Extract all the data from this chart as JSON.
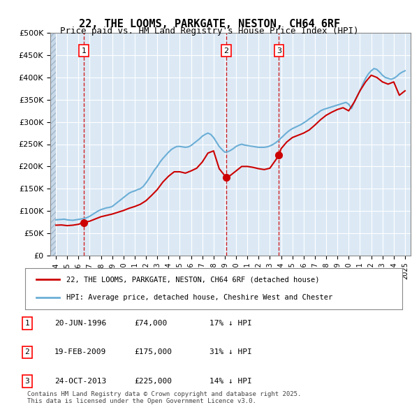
{
  "title": "22, THE LOOMS, PARKGATE, NESTON, CH64 6RF",
  "subtitle": "Price paid vs. HM Land Registry's House Price Index (HPI)",
  "title_fontsize": 11,
  "subtitle_fontsize": 9,
  "ylabel_ticks": [
    "£0",
    "£50K",
    "£100K",
    "£150K",
    "£200K",
    "£250K",
    "£300K",
    "£350K",
    "£400K",
    "£450K",
    "£500K"
  ],
  "ytick_values": [
    0,
    50000,
    100000,
    150000,
    200000,
    250000,
    300000,
    350000,
    400000,
    450000,
    500000
  ],
  "xlim_start": 1993.5,
  "xlim_end": 2025.5,
  "ylim_min": 0,
  "ylim_max": 500000,
  "hpi_color": "#6baed6",
  "price_color": "#cc0000",
  "vline_color": "#cc0000",
  "sale_dates_decimal": [
    1996.47,
    2009.13,
    2013.81
  ],
  "sale_prices": [
    74000,
    175000,
    225000
  ],
  "sale_labels": [
    "1",
    "2",
    "3"
  ],
  "legend_label_red": "22, THE LOOMS, PARKGATE, NESTON, CH64 6RF (detached house)",
  "legend_label_blue": "HPI: Average price, detached house, Cheshire West and Chester",
  "table_data": [
    [
      "1",
      "20-JUN-1996",
      "£74,000",
      "17% ↓ HPI"
    ],
    [
      "2",
      "19-FEB-2009",
      "£175,000",
      "31% ↓ HPI"
    ],
    [
      "3",
      "24-OCT-2013",
      "£225,000",
      "14% ↓ HPI"
    ]
  ],
  "footer": "Contains HM Land Registry data © Crown copyright and database right 2025.\nThis data is licensed under the Open Government Licence v3.0.",
  "background_color": "#dce9f5",
  "plot_bg_color": "#dce9f5",
  "hatch_color": "#b0c4d8",
  "grid_color": "#ffffff",
  "hpi_data": {
    "years": [
      1994,
      1994.25,
      1994.5,
      1994.75,
      1995,
      1995.25,
      1995.5,
      1995.75,
      1996,
      1996.25,
      1996.5,
      1996.75,
      1997,
      1997.25,
      1997.5,
      1997.75,
      1998,
      1998.25,
      1998.5,
      1998.75,
      1999,
      1999.25,
      1999.5,
      1999.75,
      2000,
      2000.25,
      2000.5,
      2000.75,
      2001,
      2001.25,
      2001.5,
      2001.75,
      2002,
      2002.25,
      2002.5,
      2002.75,
      2003,
      2003.25,
      2003.5,
      2003.75,
      2004,
      2004.25,
      2004.5,
      2004.75,
      2005,
      2005.25,
      2005.5,
      2005.75,
      2006,
      2006.25,
      2006.5,
      2006.75,
      2007,
      2007.25,
      2007.5,
      2007.75,
      2008,
      2008.25,
      2008.5,
      2008.75,
      2009,
      2009.25,
      2009.5,
      2009.75,
      2010,
      2010.25,
      2010.5,
      2010.75,
      2011,
      2011.25,
      2011.5,
      2011.75,
      2012,
      2012.25,
      2012.5,
      2012.75,
      2013,
      2013.25,
      2013.5,
      2013.75,
      2014,
      2014.25,
      2014.5,
      2014.75,
      2015,
      2015.25,
      2015.5,
      2015.75,
      2016,
      2016.25,
      2016.5,
      2016.75,
      2017,
      2017.25,
      2017.5,
      2017.75,
      2018,
      2018.25,
      2018.5,
      2018.75,
      2019,
      2019.25,
      2019.5,
      2019.75,
      2020,
      2020.25,
      2020.5,
      2020.75,
      2021,
      2021.25,
      2021.5,
      2021.75,
      2022,
      2022.25,
      2022.5,
      2022.75,
      2023,
      2023.25,
      2023.5,
      2023.75,
      2024,
      2024.25,
      2024.5,
      2024.75,
      2025
    ],
    "values": [
      80000,
      80500,
      81000,
      81500,
      80000,
      79500,
      79000,
      80000,
      81000,
      82000,
      83000,
      85000,
      88000,
      92000,
      96000,
      100000,
      103000,
      105000,
      107000,
      108000,
      110000,
      115000,
      120000,
      125000,
      130000,
      135000,
      140000,
      143000,
      145000,
      148000,
      150000,
      155000,
      163000,
      172000,
      182000,
      192000,
      200000,
      210000,
      218000,
      225000,
      232000,
      238000,
      242000,
      245000,
      245000,
      244000,
      243000,
      244000,
      247000,
      252000,
      257000,
      262000,
      268000,
      272000,
      275000,
      272000,
      265000,
      255000,
      245000,
      238000,
      232000,
      233000,
      236000,
      240000,
      245000,
      248000,
      250000,
      248000,
      247000,
      246000,
      245000,
      244000,
      243000,
      243000,
      243000,
      244000,
      246000,
      249000,
      253000,
      258000,
      264000,
      270000,
      276000,
      281000,
      285000,
      288000,
      291000,
      294000,
      298000,
      302000,
      307000,
      311000,
      316000,
      320000,
      325000,
      328000,
      330000,
      332000,
      334000,
      336000,
      338000,
      340000,
      342000,
      344000,
      340000,
      330000,
      345000,
      358000,
      370000,
      385000,
      398000,
      408000,
      415000,
      420000,
      418000,
      412000,
      405000,
      400000,
      398000,
      396000,
      398000,
      402000,
      408000,
      412000,
      415000
    ]
  },
  "price_data": {
    "years": [
      1994,
      1994.5,
      1995,
      1995.5,
      1996,
      1996.47,
      1997,
      1997.5,
      1998,
      1998.5,
      1999,
      1999.5,
      2000,
      2000.5,
      2001,
      2001.5,
      2002,
      2002.5,
      2003,
      2003.5,
      2004,
      2004.5,
      2005,
      2005.5,
      2006,
      2006.5,
      2007,
      2007.5,
      2008,
      2008.5,
      2009.13,
      2009.5,
      2010,
      2010.5,
      2011,
      2011.5,
      2012,
      2012.5,
      2013,
      2013.81,
      2014,
      2014.5,
      2015,
      2015.5,
      2016,
      2016.5,
      2017,
      2017.5,
      2018,
      2018.5,
      2019,
      2019.5,
      2020,
      2020.5,
      2021,
      2021.5,
      2022,
      2022.5,
      2023,
      2023.5,
      2024,
      2024.5,
      2025
    ],
    "values": [
      68000,
      68500,
      67000,
      68000,
      70000,
      74000,
      77000,
      82000,
      87000,
      90000,
      93000,
      97000,
      101000,
      106000,
      110000,
      115000,
      123000,
      135000,
      148000,
      165000,
      178000,
      188000,
      188000,
      185000,
      190000,
      196000,
      210000,
      230000,
      235000,
      195000,
      175000,
      180000,
      190000,
      200000,
      200000,
      198000,
      195000,
      193000,
      196000,
      225000,
      240000,
      255000,
      265000,
      270000,
      275000,
      282000,
      293000,
      305000,
      315000,
      322000,
      328000,
      332000,
      325000,
      345000,
      370000,
      390000,
      405000,
      400000,
      390000,
      385000,
      390000,
      360000,
      370000
    ]
  }
}
